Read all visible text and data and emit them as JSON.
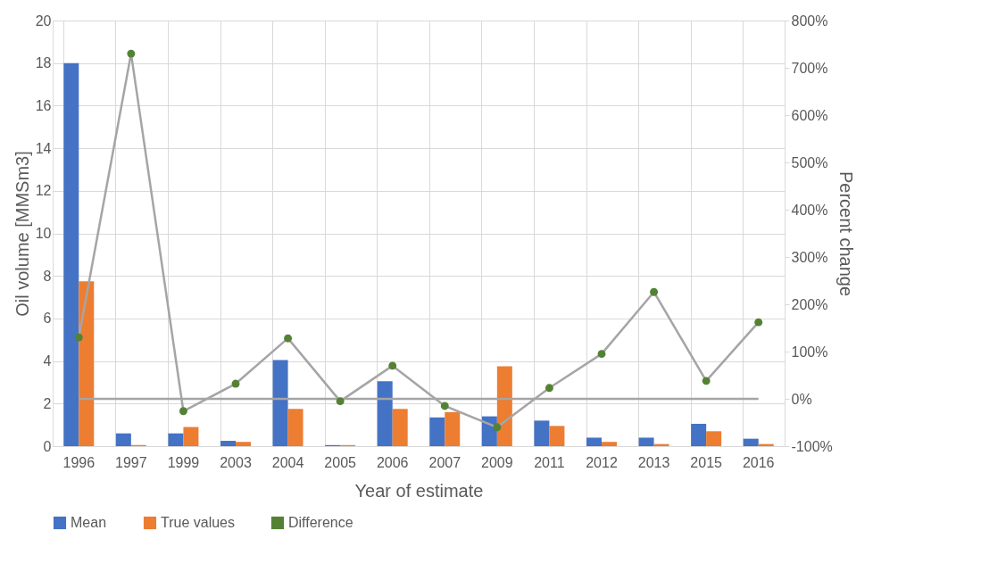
{
  "chart_data": {
    "type": "bar",
    "xlabel": "Year of estimate",
    "ylabel": "Oil volume [MMSm3]",
    "y2label": "Percent change",
    "categories": [
      "1996",
      "1997",
      "1999",
      "2003",
      "2004",
      "2005",
      "2006",
      "2007",
      "2009",
      "2011",
      "2012",
      "2013",
      "2015",
      "2016"
    ],
    "series": [
      {
        "name": "Mean",
        "color": "#4472c4",
        "values": [
          18,
          0.6,
          0.6,
          0.25,
          4.05,
          0.05,
          3.05,
          1.35,
          1.4,
          1.2,
          0.4,
          0.4,
          1.05,
          0.35
        ]
      },
      {
        "name": "True values",
        "color": "#ed7d31",
        "values": [
          7.75,
          0.05,
          0.9,
          0.2,
          1.75,
          0.05,
          1.75,
          1.6,
          3.75,
          0.95,
          0.2,
          0.1,
          0.7,
          0.1
        ]
      },
      {
        "name": "Difference",
        "type": "line",
        "axis": "y2",
        "color": "#a5a5a5",
        "colors": [
          "#548235",
          "#548235",
          "#548235",
          "#548235",
          "#548235",
          "#548235",
          "#548235",
          "#548235",
          "#548235",
          "#548235",
          "#548235",
          "#548235",
          "#548235",
          "#548235"
        ],
        "marker": "circle",
        "values": [
          130,
          730,
          -26,
          32,
          128,
          -5,
          70,
          -15,
          -60,
          23,
          95,
          226,
          38,
          162
        ]
      }
    ],
    "ylim": [
      0,
      20
    ],
    "yticks": [
      0,
      2,
      4,
      6,
      8,
      10,
      12,
      14,
      16,
      18,
      20
    ],
    "y2lim": [
      -100,
      800
    ],
    "y2ticks": [
      {
        "value": -100,
        "label": "-100%"
      },
      {
        "value": 0,
        "label": "0%"
      },
      {
        "value": 100,
        "label": "100%"
      },
      {
        "value": 200,
        "label": "200%"
      },
      {
        "value": 300,
        "label": "300%"
      },
      {
        "value": 400,
        "label": "400%"
      },
      {
        "value": 500,
        "label": "500%"
      },
      {
        "value": 600,
        "label": "600%"
      },
      {
        "value": 700,
        "label": "700%"
      },
      {
        "value": 800,
        "label": "800%"
      }
    ],
    "ref_lines": [
      {
        "axis": "y2",
        "value": 0,
        "color": "#a5a5a5"
      }
    ],
    "grid": true,
    "legend": "bottom"
  }
}
